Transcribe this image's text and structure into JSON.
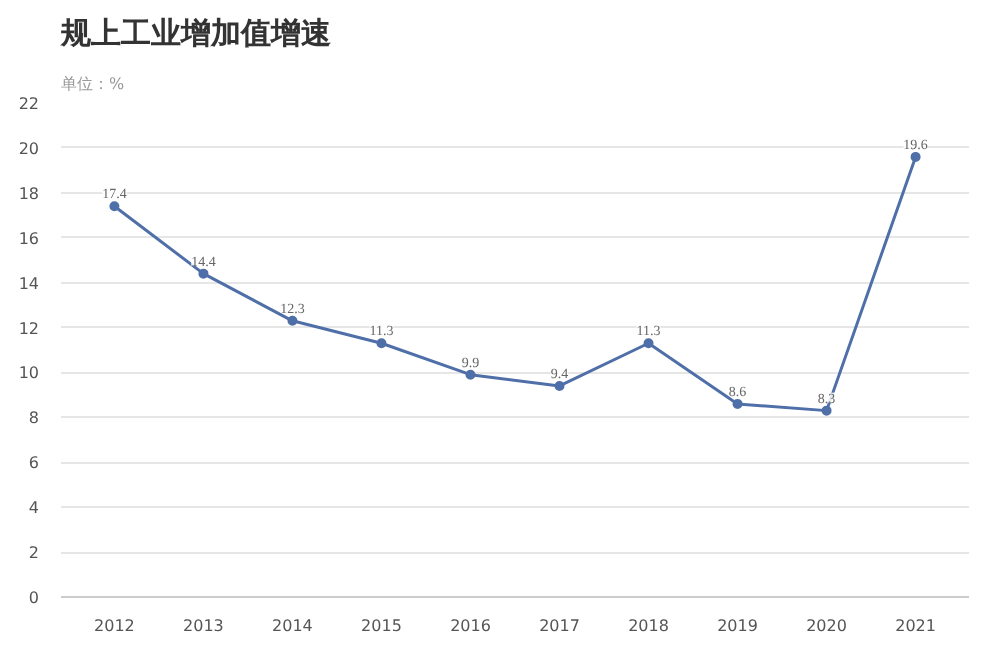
{
  "chart_data": {
    "type": "line",
    "title": "规上工业增加值增速",
    "subtitle": "单位：%",
    "categories": [
      "2012",
      "2013",
      "2014",
      "2015",
      "2016",
      "2017",
      "2018",
      "2019",
      "2020",
      "2021"
    ],
    "series": [
      {
        "color": "#4f6fa8",
        "values": [
          17.4,
          14.4,
          12.3,
          11.3,
          9.9,
          9.4,
          11.3,
          8.6,
          8.3,
          19.6
        ]
      }
    ],
    "ylim": [
      0,
      22
    ],
    "yticks": [
      0,
      2,
      4,
      6,
      8,
      10,
      12,
      14,
      16,
      18,
      20,
      22
    ],
    "grid": "y",
    "marker": "circle",
    "line_style": "solid",
    "data_labels": true
  }
}
